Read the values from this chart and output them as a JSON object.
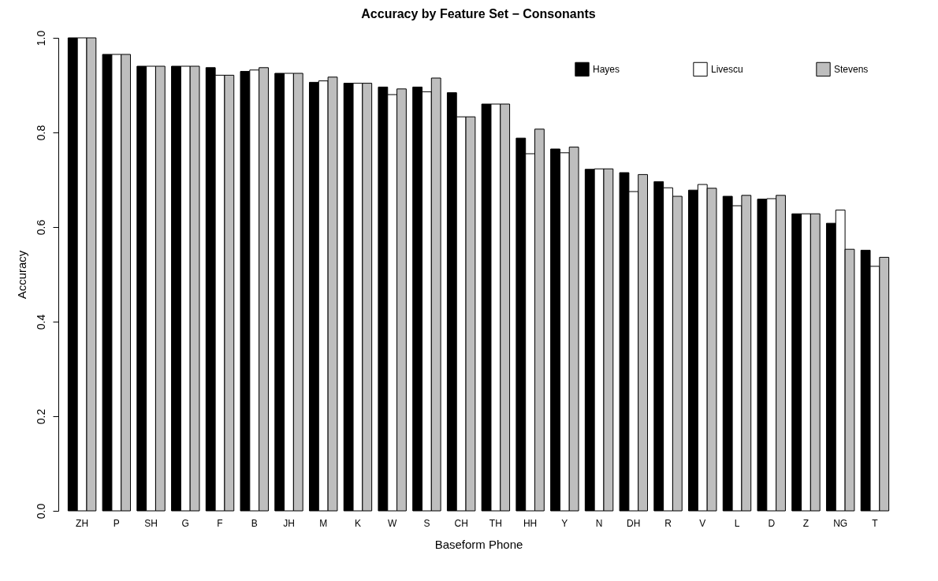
{
  "chart_data": {
    "type": "bar",
    "title": "Accuracy by Feature Set − Consonants",
    "xlabel": "Baseform Phone",
    "ylabel": "Accuracy",
    "categories": [
      "ZH",
      "P",
      "SH",
      "G",
      "F",
      "B",
      "JH",
      "M",
      "K",
      "W",
      "S",
      "CH",
      "TH",
      "HH",
      "Y",
      "N",
      "DH",
      "R",
      "V",
      "L",
      "D",
      "Z",
      "NG",
      "T"
    ],
    "series": [
      {
        "name": "Hayes",
        "color": "#000000",
        "values": [
          1.0,
          0.965,
          0.94,
          0.94,
          0.937,
          0.929,
          0.925,
          0.906,
          0.904,
          0.896,
          0.896,
          0.884,
          0.86,
          0.788,
          0.765,
          0.722,
          0.715,
          0.696,
          0.678,
          0.665,
          0.659,
          0.628,
          0.608,
          0.551
        ]
      },
      {
        "name": "Livescu",
        "color": "#ffffff",
        "values": [
          1.0,
          0.965,
          0.94,
          0.94,
          0.921,
          0.932,
          0.925,
          0.909,
          0.904,
          0.88,
          0.886,
          0.833,
          0.86,
          0.755,
          0.757,
          0.723,
          0.675,
          0.683,
          0.69,
          0.645,
          0.66,
          0.628,
          0.636,
          0.517
        ]
      },
      {
        "name": "Stevens",
        "color": "#bebebe",
        "values": [
          1.0,
          0.965,
          0.94,
          0.94,
          0.921,
          0.937,
          0.925,
          0.917,
          0.904,
          0.892,
          0.915,
          0.833,
          0.86,
          0.807,
          0.769,
          0.723,
          0.711,
          0.665,
          0.682,
          0.667,
          0.667,
          0.628,
          0.553,
          0.536
        ]
      }
    ],
    "ylim": [
      0,
      1.0
    ],
    "yticks": [
      {
        "value": 0,
        "label": "0.0"
      },
      0.2,
      0.4,
      0.6,
      0.8,
      {
        "value": 1,
        "label": "1.0"
      }
    ],
    "legend": "top right",
    "grid": false
  }
}
